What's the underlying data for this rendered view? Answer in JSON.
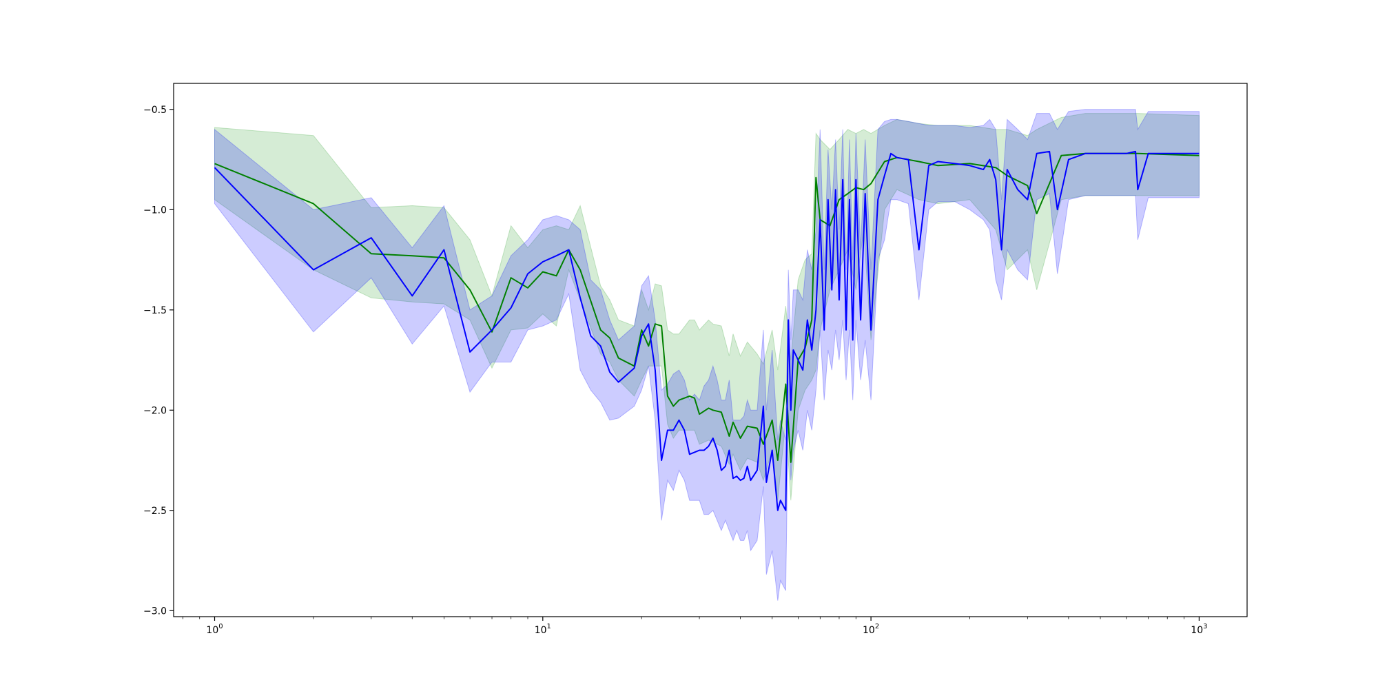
{
  "chart_data": {
    "type": "line",
    "title": "",
    "xlabel": "",
    "ylabel": "",
    "xscale": "log",
    "xlim": [
      0.75,
      1400
    ],
    "ylim": [
      -3.03,
      -0.37
    ],
    "grid": false,
    "legend": "none",
    "y_ticks": [
      -0.5,
      -1.0,
      -1.5,
      -2.0,
      -2.5,
      -3.0
    ],
    "y_tick_labels": [
      "−0.5",
      "−1.0",
      "−1.5",
      "−2.0",
      "−2.5",
      "−3.0"
    ],
    "x_ticks": [
      1,
      10,
      100,
      1000
    ],
    "x_tick_labels": [
      {
        "base": "10",
        "exp": "0"
      },
      {
        "base": "10",
        "exp": "1"
      },
      {
        "base": "10",
        "exp": "2"
      },
      {
        "base": "10",
        "exp": "3"
      }
    ],
    "series": [
      {
        "color": "#008000",
        "band_color": "#2ca02c",
        "x": [
          1,
          2,
          3,
          4,
          5,
          6,
          7,
          8,
          9,
          10,
          11,
          12,
          13,
          15,
          16,
          17,
          19,
          20,
          21,
          22,
          23,
          24,
          25,
          26,
          28,
          29,
          30,
          32,
          33,
          35,
          37,
          38,
          40,
          42,
          45,
          47,
          50,
          52,
          55,
          57,
          60,
          63,
          66,
          68,
          70,
          75,
          80,
          85,
          90,
          95,
          100,
          110,
          120,
          140,
          160,
          200,
          240,
          260,
          300,
          320,
          380,
          450,
          600,
          650,
          1000
        ],
        "y": [
          -0.77,
          -0.97,
          -1.22,
          -1.23,
          -1.24,
          -1.4,
          -1.61,
          -1.34,
          -1.39,
          -1.31,
          -1.33,
          -1.2,
          -1.3,
          -1.6,
          -1.64,
          -1.74,
          -1.78,
          -1.6,
          -1.68,
          -1.57,
          -1.58,
          -1.93,
          -1.98,
          -1.95,
          -1.93,
          -1.94,
          -2.02,
          -1.99,
          -2.0,
          -2.01,
          -2.13,
          -2.06,
          -2.14,
          -2.08,
          -2.09,
          -2.17,
          -2.05,
          -2.25,
          -1.87,
          -2.26,
          -1.75,
          -1.69,
          -1.55,
          -0.84,
          -1.05,
          -1.08,
          -0.95,
          -0.92,
          -0.89,
          -0.9,
          -0.87,
          -0.76,
          -0.74,
          -0.76,
          -0.78,
          -0.77,
          -0.79,
          -0.83,
          -0.88,
          -1.02,
          -0.73,
          -0.72,
          -0.72,
          -0.72,
          -0.73
        ],
        "lower": [
          -0.95,
          -1.3,
          -1.44,
          -1.46,
          -1.47,
          -1.55,
          -1.79,
          -1.6,
          -1.59,
          -1.52,
          -1.58,
          -1.3,
          -1.45,
          -1.72,
          -1.76,
          -1.85,
          -1.93,
          -1.85,
          -1.78,
          -1.78,
          -1.78,
          -2.07,
          -2.14,
          -2.1,
          -2.1,
          -2.1,
          -2.17,
          -2.15,
          -2.16,
          -2.18,
          -2.27,
          -2.22,
          -2.3,
          -2.24,
          -2.26,
          -2.35,
          -2.2,
          -2.45,
          -2.05,
          -2.45,
          -2.0,
          -1.9,
          -1.85,
          -1.8,
          -1.6,
          -1.4,
          -1.3,
          -1.2,
          -1.4,
          -1.1,
          -1.65,
          -1.0,
          -0.9,
          -0.95,
          -0.97,
          -0.95,
          -1.1,
          -1.3,
          -1.2,
          -1.4,
          -0.95,
          -0.93,
          -0.93,
          -0.93,
          -0.93
        ],
        "upper": [
          -0.59,
          -0.63,
          -0.99,
          -0.98,
          -0.99,
          -1.15,
          -1.43,
          -1.08,
          -1.19,
          -1.1,
          -1.08,
          -1.1,
          -0.98,
          -1.38,
          -1.45,
          -1.55,
          -1.58,
          -1.4,
          -1.5,
          -1.37,
          -1.38,
          -1.6,
          -1.62,
          -1.62,
          -1.55,
          -1.55,
          -1.6,
          -1.55,
          -1.57,
          -1.58,
          -1.73,
          -1.62,
          -1.73,
          -1.66,
          -1.72,
          -1.77,
          -1.6,
          -1.8,
          -1.48,
          -1.75,
          -1.35,
          -1.25,
          -1.22,
          -0.62,
          -0.65,
          -0.7,
          -0.65,
          -0.6,
          -0.62,
          -0.6,
          -0.62,
          -0.58,
          -0.55,
          -0.57,
          -0.58,
          -0.58,
          -0.6,
          -0.6,
          -0.63,
          -0.6,
          -0.54,
          -0.52,
          -0.52,
          -0.52,
          -0.53
        ]
      },
      {
        "color": "#0000ff",
        "band_color": "#0000ff",
        "x": [
          1,
          2,
          3,
          4,
          5,
          6,
          7,
          8,
          9,
          10,
          11,
          12,
          13,
          14,
          15,
          16,
          17,
          19,
          20,
          21,
          22,
          23,
          24,
          25,
          26,
          27,
          28,
          29,
          30,
          31,
          32,
          33,
          34,
          35,
          36,
          37,
          38,
          39,
          40,
          41,
          42,
          43,
          45,
          47,
          48,
          50,
          52,
          53,
          55,
          56,
          57,
          58,
          60,
          62,
          64,
          66,
          68,
          70,
          72,
          74,
          76,
          78,
          80,
          82,
          84,
          86,
          88,
          90,
          93,
          96,
          100,
          105,
          110,
          115,
          120,
          130,
          140,
          150,
          160,
          180,
          200,
          220,
          230,
          240,
          250,
          260,
          280,
          300,
          320,
          350,
          370,
          400,
          450,
          500,
          600,
          640,
          650,
          700,
          800,
          1000
        ],
        "y": [
          -0.79,
          -1.3,
          -1.14,
          -1.43,
          -1.2,
          -1.71,
          -1.6,
          -1.49,
          -1.32,
          -1.26,
          -1.23,
          -1.2,
          -1.44,
          -1.63,
          -1.68,
          -1.81,
          -1.86,
          -1.79,
          -1.63,
          -1.57,
          -1.8,
          -2.25,
          -2.1,
          -2.1,
          -2.05,
          -2.1,
          -2.22,
          -2.21,
          -2.2,
          -2.2,
          -2.18,
          -2.14,
          -2.2,
          -2.3,
          -2.28,
          -2.2,
          -2.34,
          -2.33,
          -2.35,
          -2.34,
          -2.28,
          -2.35,
          -2.3,
          -1.98,
          -2.36,
          -2.2,
          -2.5,
          -2.45,
          -2.5,
          -1.55,
          -2.0,
          -1.7,
          -1.75,
          -1.8,
          -1.55,
          -1.7,
          -1.5,
          -1.05,
          -1.6,
          -0.95,
          -1.4,
          -0.9,
          -1.45,
          -0.85,
          -1.6,
          -0.95,
          -1.65,
          -0.85,
          -1.55,
          -0.92,
          -1.6,
          -0.95,
          -0.83,
          -0.72,
          -0.74,
          -0.75,
          -1.2,
          -0.78,
          -0.76,
          -0.77,
          -0.78,
          -0.8,
          -0.75,
          -0.85,
          -1.2,
          -0.8,
          -0.9,
          -0.95,
          -0.72,
          -0.71,
          -1.0,
          -0.75,
          -0.72,
          -0.72,
          -0.72,
          -0.71,
          -0.9,
          -0.72,
          -0.72,
          -0.72
        ],
        "lower": [
          -0.97,
          -1.61,
          -1.34,
          -1.67,
          -1.48,
          -1.91,
          -1.76,
          -1.76,
          -1.6,
          -1.58,
          -1.55,
          -1.42,
          -1.8,
          -1.9,
          -1.96,
          -2.05,
          -2.04,
          -1.98,
          -1.9,
          -1.78,
          -2.05,
          -2.55,
          -2.35,
          -2.4,
          -2.3,
          -2.35,
          -2.45,
          -2.45,
          -2.45,
          -2.52,
          -2.52,
          -2.5,
          -2.55,
          -2.6,
          -2.55,
          -2.6,
          -2.65,
          -2.6,
          -2.65,
          -2.65,
          -2.6,
          -2.7,
          -2.65,
          -2.38,
          -2.82,
          -2.7,
          -2.95,
          -2.85,
          -2.9,
          -2.0,
          -2.35,
          -2.2,
          -2.1,
          -2.2,
          -2.0,
          -2.1,
          -1.9,
          -1.6,
          -1.95,
          -1.7,
          -1.8,
          -1.6,
          -1.75,
          -1.55,
          -1.85,
          -1.6,
          -1.95,
          -1.55,
          -1.85,
          -1.65,
          -1.95,
          -1.25,
          -1.15,
          -0.95,
          -0.95,
          -0.97,
          -1.45,
          -1.0,
          -0.96,
          -0.96,
          -1.0,
          -1.05,
          -1.1,
          -1.35,
          -1.45,
          -1.2,
          -1.3,
          -1.35,
          -0.95,
          -0.92,
          -1.32,
          -0.95,
          -0.93,
          -0.93,
          -0.93,
          -0.93,
          -1.15,
          -0.94,
          -0.94,
          -0.94
        ],
        "upper": [
          -0.6,
          -1.0,
          -0.94,
          -1.19,
          -0.98,
          -1.5,
          -1.43,
          -1.23,
          -1.15,
          -1.05,
          -1.03,
          -1.05,
          -1.1,
          -1.35,
          -1.4,
          -1.55,
          -1.65,
          -1.58,
          -1.38,
          -1.33,
          -1.55,
          -1.9,
          -1.87,
          -1.82,
          -1.8,
          -1.85,
          -1.95,
          -1.92,
          -1.95,
          -1.88,
          -1.85,
          -1.78,
          -1.85,
          -1.95,
          -1.95,
          -1.85,
          -2.05,
          -2.05,
          -2.05,
          -2.03,
          -1.95,
          -2.0,
          -2.0,
          -1.6,
          -2.0,
          -1.7,
          -2.15,
          -2.05,
          -2.15,
          -1.3,
          -1.65,
          -1.4,
          -1.4,
          -1.45,
          -1.2,
          -1.3,
          -1.1,
          -0.6,
          -1.3,
          -0.7,
          -1.0,
          -0.65,
          -1.1,
          -0.6,
          -1.3,
          -0.65,
          -1.25,
          -0.62,
          -1.2,
          -0.65,
          -1.3,
          -0.6,
          -0.56,
          -0.55,
          -0.55,
          -0.56,
          -0.57,
          -0.58,
          -0.58,
          -0.58,
          -0.59,
          -0.58,
          -0.55,
          -0.6,
          -0.95,
          -0.55,
          -0.6,
          -0.65,
          -0.52,
          -0.52,
          -0.6,
          -0.51,
          -0.5,
          -0.5,
          -0.5,
          -0.5,
          -0.6,
          -0.51,
          -0.51,
          -0.51
        ]
      }
    ]
  }
}
